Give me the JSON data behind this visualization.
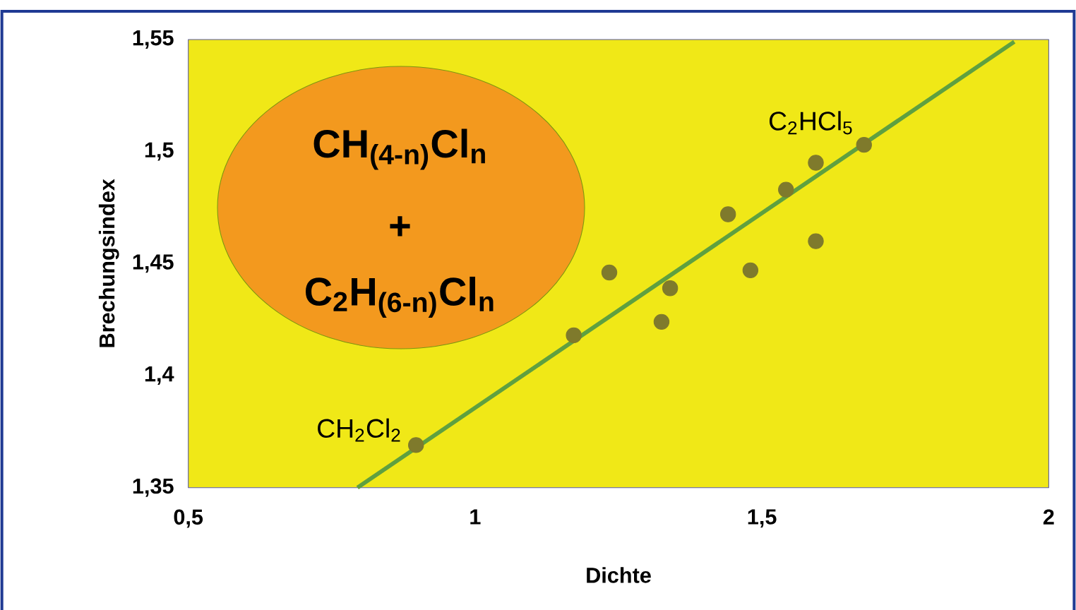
{
  "chart_data": {
    "type": "scatter",
    "xlabel": "Dichte",
    "ylabel": "Brechungsindex",
    "xlim": [
      0.5,
      2
    ],
    "ylim": [
      1.35,
      1.55
    ],
    "xticks": [
      {
        "value": 0.5,
        "label": "0,5"
      },
      1,
      {
        "value": 1.5,
        "label": "1,5"
      },
      2
    ],
    "yticks": [
      {
        "value": 1.35,
        "label": "1,35"
      },
      {
        "value": 1.4,
        "label": "1,4"
      },
      {
        "value": 1.45,
        "label": "1,45"
      },
      {
        "value": 1.5,
        "label": "1,5"
      },
      {
        "value": 1.55,
        "label": "1,55"
      }
    ],
    "series": [
      {
        "marker": "circle",
        "color": "#7f7a2c",
        "x": [
          0.897,
          1.172,
          1.234,
          1.325,
          1.34,
          1.441,
          1.48,
          1.542,
          1.594,
          1.594,
          1.678
        ],
        "values": [
          1.369,
          1.418,
          1.446,
          1.424,
          1.439,
          1.472,
          1.447,
          1.483,
          1.495,
          1.46,
          1.503
        ]
      },
      {
        "type": "line",
        "marker": "none",
        "color": "#5fa040",
        "x": [
          0.795,
          1.94
        ],
        "values": [
          1.35,
          1.549
        ]
      }
    ],
    "annotations": [
      {
        "text": "CH$_{2}$Cl$_{2}$",
        "x": 0.897,
        "y": 1.369
      },
      {
        "text": "C$_{2}$HCl$_{5}$",
        "x": 1.678,
        "y": 1.503
      },
      "CH$_{(4-n)}$Cl$_{n}$",
      "+",
      "C$_{2}$H$_{(6-n)}$Cl$_{n}$"
    ]
  }
}
